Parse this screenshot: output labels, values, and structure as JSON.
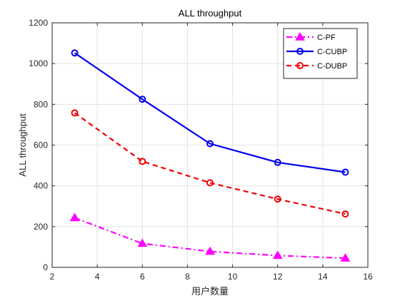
{
  "chart_data": {
    "type": "line",
    "title": "ALL throughput",
    "xlabel": "用户数量",
    "ylabel": "ALL throughput",
    "xlim": [
      2,
      16
    ],
    "ylim": [
      0,
      1200
    ],
    "xticks": [
      2,
      4,
      6,
      8,
      10,
      12,
      14,
      16
    ],
    "yticks": [
      0,
      200,
      400,
      600,
      800,
      1000,
      1200
    ],
    "grid": true,
    "legend_position": "top-right",
    "x": [
      3,
      6,
      9,
      12,
      15
    ],
    "series": [
      {
        "name": "C-PF",
        "values": [
          243,
          117,
          78,
          58,
          45
        ],
        "color": "#ff00ff",
        "line_style": "dash-dot",
        "marker": "triangle"
      },
      {
        "name": "C-CUBP",
        "values": [
          1052,
          825,
          607,
          515,
          467
        ],
        "color": "#0000ee",
        "line_style": "solid",
        "marker": "circle"
      },
      {
        "name": "C-DUBP",
        "values": [
          758,
          520,
          415,
          335,
          262
        ],
        "color": "#ee0000",
        "line_style": "dashed",
        "marker": "circle"
      }
    ]
  }
}
